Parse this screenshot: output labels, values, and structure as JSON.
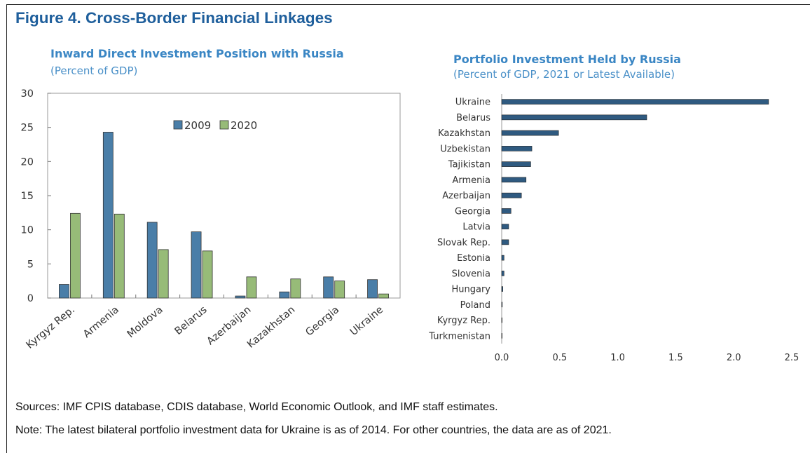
{
  "figure": {
    "title": "Figure 4. Cross-Border Financial Linkages",
    "sources": "Sources: IMF CPIS database, CDIS database, World Economic Outlook, and IMF staff estimates.",
    "note": "Note: The latest bilateral portfolio investment data for Ukraine is as of 2014. For other countries, the data are as of 2021."
  },
  "left_chart": {
    "title": "Inward Direct Investment Position with Russia",
    "unit": "(Percent of GDP)"
  },
  "right_chart": {
    "title": "Portfolio Investment Held by Russia",
    "unit": "(Percent of GDP, 2021 or Latest Available)"
  },
  "colors": {
    "series_2009": "#4a7ea8",
    "series_2020": "#97bb78",
    "bars_right": "#2f5a80"
  },
  "chart_data": [
    {
      "type": "bar",
      "title": "Inward Direct Investment Position with Russia",
      "ylabel": "(Percent of GDP)",
      "categories": [
        "Kyrgyz Rep.",
        "Armenia",
        "Moldova",
        "Belarus",
        "Azerbaijan",
        "Kazakhstan",
        "Georgia",
        "Ukraine"
      ],
      "series": [
        {
          "name": "2009",
          "values": [
            2.0,
            24.3,
            11.1,
            9.7,
            0.3,
            0.9,
            3.1,
            2.7
          ]
        },
        {
          "name": "2020",
          "values": [
            12.4,
            12.3,
            7.1,
            6.9,
            3.1,
            2.8,
            2.5,
            0.6
          ]
        }
      ],
      "ylim": [
        0,
        30
      ],
      "yticks": [
        "0",
        "5",
        "10",
        "15",
        "20",
        "25",
        "30"
      ],
      "legend_position": "top-center",
      "grid": false
    },
    {
      "type": "bar",
      "orientation": "horizontal",
      "title": "Portfolio Investment Held by Russia",
      "xlabel": "(Percent of GDP, 2021 or Latest Available)",
      "categories": [
        "Ukraine",
        "Belarus",
        "Kazakhstan",
        "Uzbekistan",
        "Tajikistan",
        "Armenia",
        "Azerbaijan",
        "Georgia",
        "Latvia",
        "Slovak Rep.",
        "Estonia",
        "Slovenia",
        "Hungary",
        "Poland",
        "Kyrgyz Rep.",
        "Turkmenistan"
      ],
      "values": [
        2.3,
        1.25,
        0.49,
        0.26,
        0.25,
        0.21,
        0.17,
        0.08,
        0.06,
        0.06,
        0.02,
        0.02,
        0.01,
        0.005,
        0.003,
        0.002
      ],
      "xlim": [
        0,
        2.5
      ],
      "xticks": [
        "0.0",
        "0.5",
        "1.0",
        "1.5",
        "2.0",
        "2.5"
      ],
      "grid": false
    }
  ]
}
